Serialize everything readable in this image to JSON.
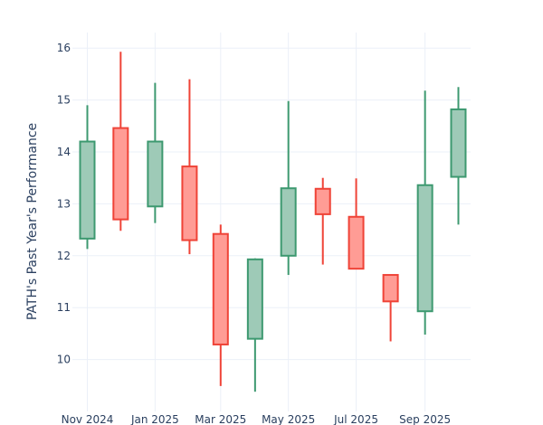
{
  "chart_data": {
    "type": "candlestick",
    "title": "",
    "xlabel": "",
    "ylabel": "PATH's Past Year's Performance",
    "x_tick_labels": [
      "Nov 2024",
      "Jan 2025",
      "Mar 2025",
      "May 2025",
      "Jul 2025",
      "Sep 2025"
    ],
    "x_tick_dates": [
      "2024-11-01",
      "2025-01-01",
      "2025-03-01",
      "2025-05-01",
      "2025-07-01",
      "2025-09-01"
    ],
    "y_ticks": [
      10,
      11,
      12,
      13,
      14,
      15,
      16
    ],
    "ylim": [
      9.0,
      16.3
    ],
    "grid": true,
    "colors": {
      "increasing_line": "#3d9970",
      "increasing_fill": "#9ecab7",
      "decreasing_line": "#ef4337",
      "decreasing_fill": "#ff9c95"
    },
    "candles": [
      {
        "date": "2024-11-01",
        "open": 12.33,
        "high": 14.9,
        "low": 12.13,
        "close": 14.2
      },
      {
        "date": "2024-12-01",
        "open": 14.46,
        "high": 15.93,
        "low": 12.48,
        "close": 12.7
      },
      {
        "date": "2025-01-01",
        "open": 12.95,
        "high": 15.33,
        "low": 12.63,
        "close": 14.2
      },
      {
        "date": "2025-02-01",
        "open": 13.72,
        "high": 15.4,
        "low": 12.03,
        "close": 12.3
      },
      {
        "date": "2025-03-01",
        "open": 12.42,
        "high": 12.6,
        "low": 9.49,
        "close": 10.29
      },
      {
        "date": "2025-04-01",
        "open": 10.4,
        "high": 11.95,
        "low": 9.38,
        "close": 11.93
      },
      {
        "date": "2025-05-01",
        "open": 12.0,
        "high": 14.98,
        "low": 11.63,
        "close": 13.3
      },
      {
        "date": "2025-06-01",
        "open": 13.29,
        "high": 13.5,
        "low": 11.83,
        "close": 12.8
      },
      {
        "date": "2025-07-01",
        "open": 12.75,
        "high": 13.49,
        "low": 11.75,
        "close": 11.75
      },
      {
        "date": "2025-08-01",
        "open": 11.63,
        "high": 11.63,
        "low": 10.35,
        "close": 11.12
      },
      {
        "date": "2025-09-01",
        "open": 10.93,
        "high": 15.18,
        "low": 10.48,
        "close": 13.36
      },
      {
        "date": "2025-10-01",
        "open": 13.52,
        "high": 15.25,
        "low": 12.6,
        "close": 14.82
      }
    ]
  }
}
